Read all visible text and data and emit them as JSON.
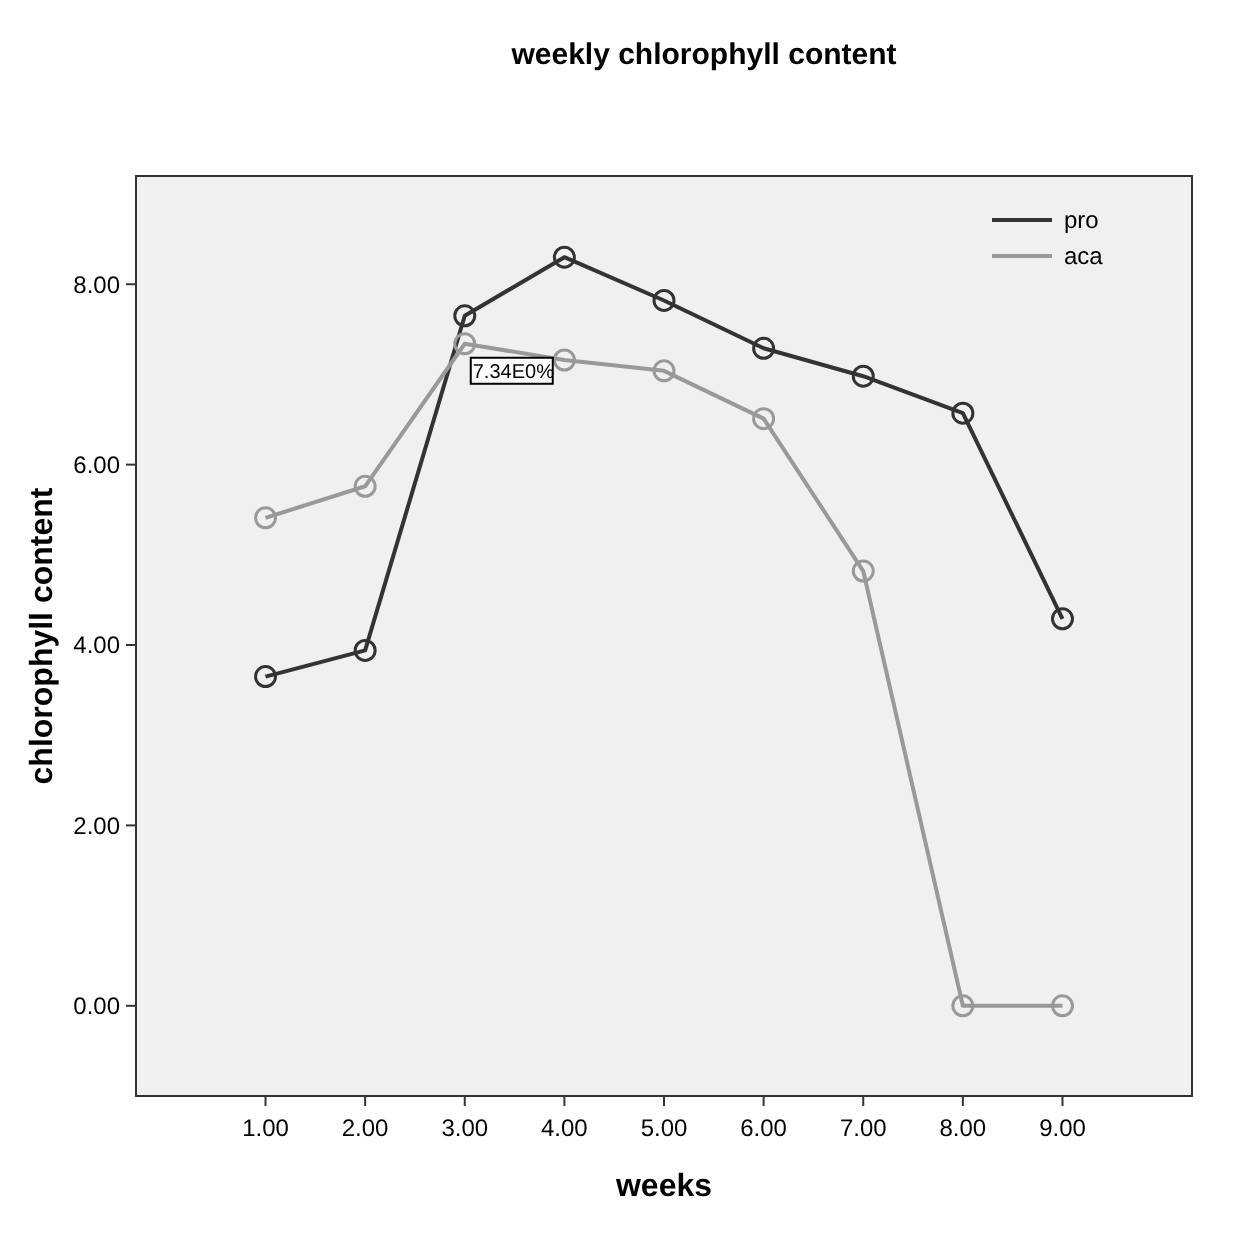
{
  "chart_data": {
    "type": "line",
    "title": "weekly chlorophyll content",
    "xlabel": "weeks",
    "ylabel": "chlorophyll content",
    "x": [
      1,
      2,
      3,
      4,
      5,
      6,
      7,
      8,
      9
    ],
    "series": [
      {
        "name": "pro",
        "color": "#333333",
        "values": [
          3.65,
          3.94,
          7.65,
          8.3,
          7.82,
          7.29,
          6.98,
          6.57,
          4.29
        ]
      },
      {
        "name": "aca",
        "color": "#999999",
        "values": [
          5.41,
          5.76,
          7.34,
          7.16,
          7.04,
          6.51,
          4.82,
          0,
          0
        ]
      }
    ],
    "xlim": [
      -0.3,
      10.3
    ],
    "ylim": [
      -1.0,
      9.2
    ],
    "xticks": [
      {
        "value": 1,
        "label": "1.00"
      },
      {
        "value": 2,
        "label": "2.00"
      },
      {
        "value": 3,
        "label": "3.00"
      },
      {
        "value": 4,
        "label": "4.00"
      },
      {
        "value": 5,
        "label": "5.00"
      },
      {
        "value": 6,
        "label": "6.00"
      },
      {
        "value": 7,
        "label": "7.00"
      },
      {
        "value": 8,
        "label": "8.00"
      },
      {
        "value": 9,
        "label": "9.00"
      }
    ],
    "yticks": [
      {
        "value": 0,
        "label": "0.00"
      },
      {
        "value": 2,
        "label": "2.00"
      },
      {
        "value": 4,
        "label": "4.00"
      },
      {
        "value": 6,
        "label": "6.00"
      },
      {
        "value": 8,
        "label": "8.00"
      }
    ],
    "annotations": [
      {
        "text": "7.34E0%",
        "x": 3,
        "y": 7.34
      }
    ],
    "legend": "top right",
    "marker": "circle",
    "line_style": "solid",
    "grid": false
  }
}
